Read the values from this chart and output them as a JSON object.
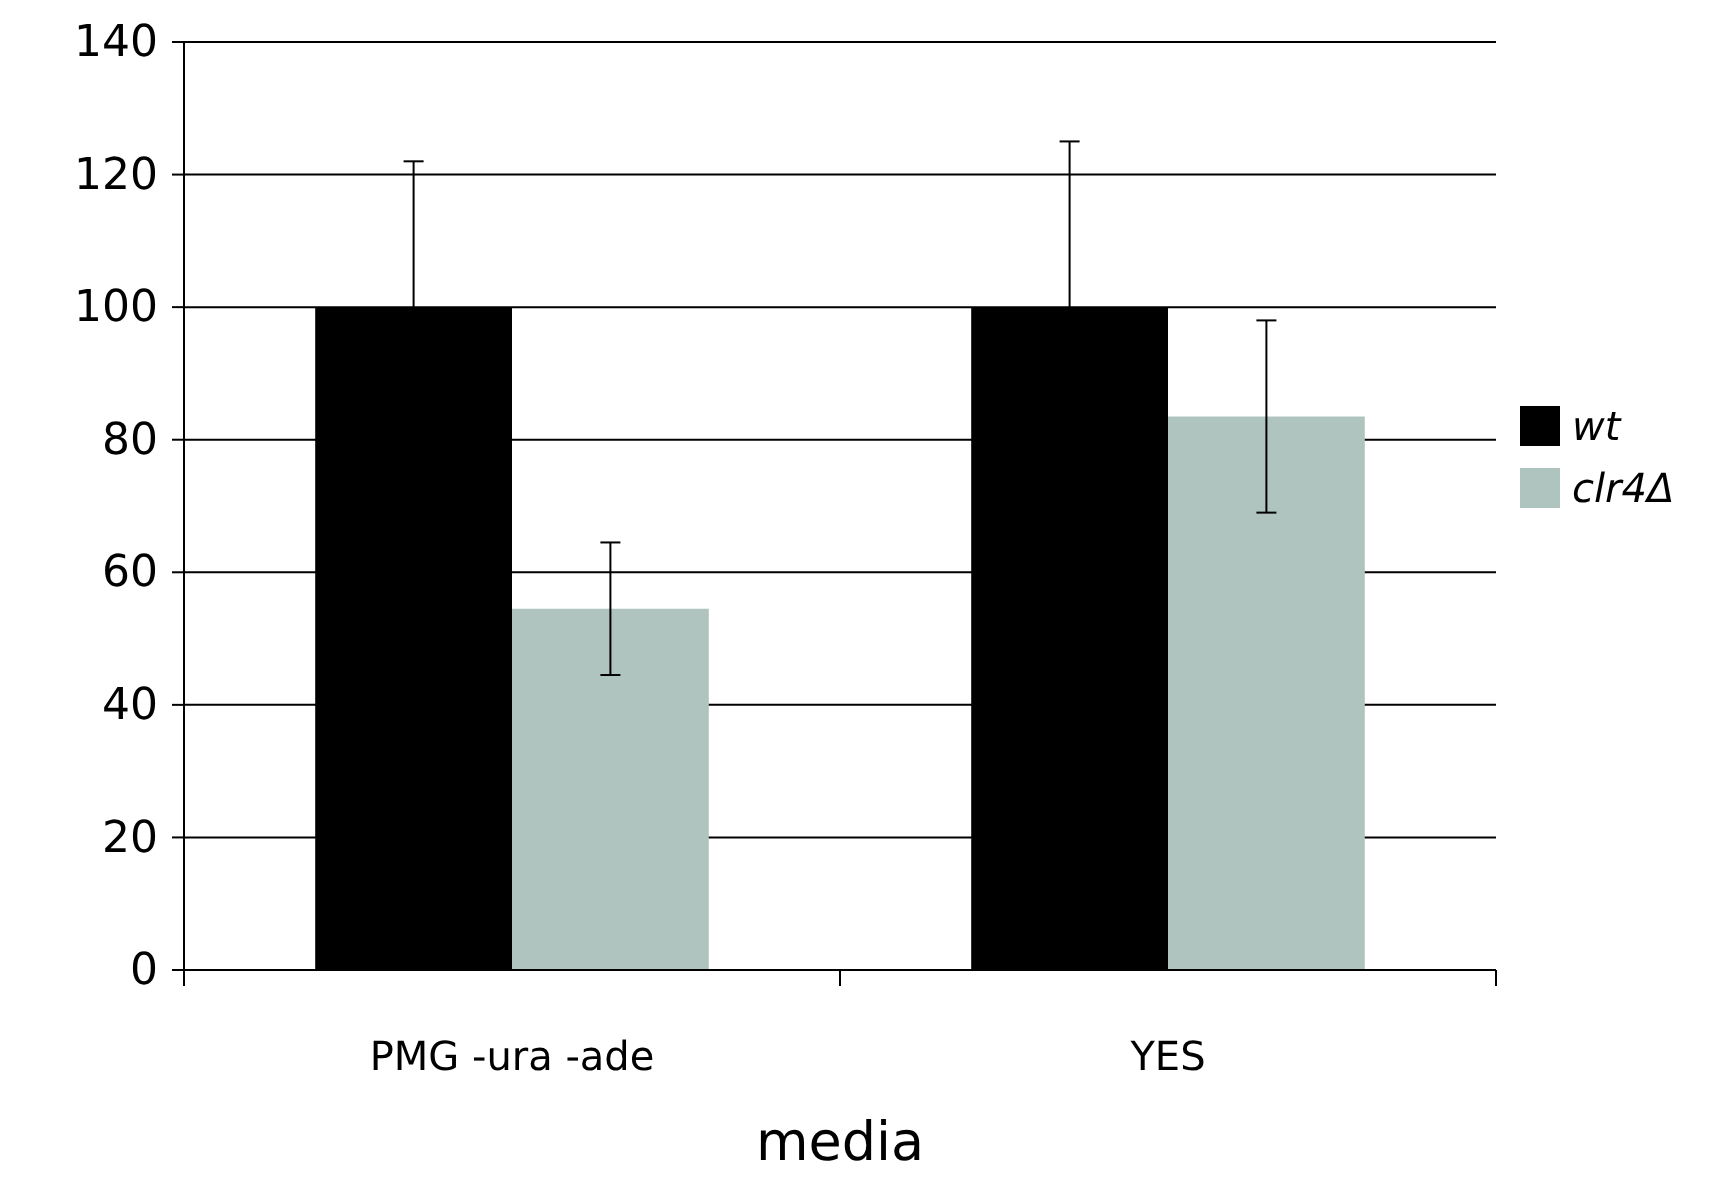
{
  "chart_data": {
    "type": "bar",
    "xlabel": "media",
    "categories": [
      "PMG -ura -ade",
      "YES"
    ],
    "series": [
      {
        "name": "wt",
        "color": "#000000",
        "values": [
          100,
          100
        ],
        "errors": [
          22,
          25
        ]
      },
      {
        "name": "clr4Δ",
        "color": "#b0c4bf",
        "values": [
          54.5,
          83.5
        ],
        "errors": [
          10,
          14.5
        ]
      }
    ],
    "ylim": [
      0,
      140
    ],
    "yticks": [
      0,
      20,
      40,
      60,
      80,
      100,
      120,
      140
    ],
    "grid": "y",
    "legend": "right"
  }
}
